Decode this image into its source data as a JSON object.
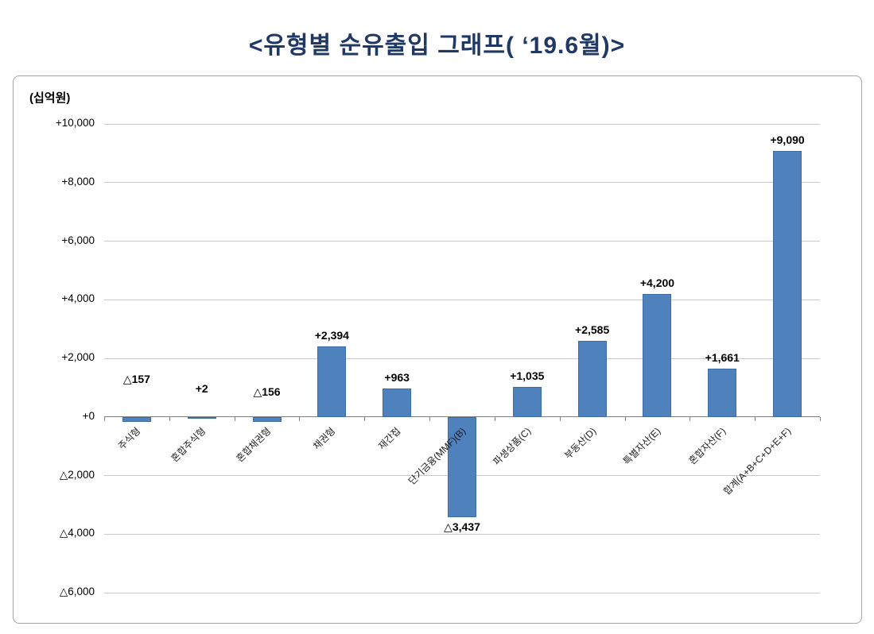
{
  "chart_data": {
    "type": "bar",
    "title": "<유형별 순유출입 그래프( ‘19.6월)>",
    "unit_label": "(십억원)",
    "categories": [
      "주식형",
      "혼합주식형",
      "혼합채권형",
      "채권형",
      "재간접",
      "단기금융(MMF)(B)",
      "파생상품(C)",
      "부동산(D)",
      "특별자산(E)",
      "혼합자산(F)",
      "합계(A+B+C+D+E+F)"
    ],
    "values": [
      -157,
      2,
      -156,
      2394,
      963,
      -3437,
      1035,
      2585,
      4200,
      1661,
      9090
    ],
    "data_labels": [
      {
        "text": "△157",
        "placement": "above_axis",
        "gap": 40
      },
      {
        "text": "+2",
        "placement": "above_axis",
        "gap": 28
      },
      {
        "text": "△156",
        "placement": "above_axis",
        "gap": 24
      },
      {
        "text": "+2,394",
        "placement": "above_bar",
        "gap": 6
      },
      {
        "text": "+963",
        "placement": "above_bar",
        "gap": 6
      },
      {
        "text": "△3,437",
        "placement": "below_bar",
        "gap": 4
      },
      {
        "text": "+1,035",
        "placement": "above_bar",
        "gap": 6
      },
      {
        "text": "+2,585",
        "placement": "above_bar",
        "gap": 6
      },
      {
        "text": "+4,200",
        "placement": "above_bar",
        "gap": 6
      },
      {
        "text": "+1,661",
        "placement": "above_bar",
        "gap": 6
      },
      {
        "text": "+9,090",
        "placement": "above_bar",
        "gap": 6
      }
    ],
    "y_ticks": [
      {
        "value": 10000,
        "label": "+10,000"
      },
      {
        "value": 8000,
        "label": "+8,000"
      },
      {
        "value": 6000,
        "label": "+6,000"
      },
      {
        "value": 4000,
        "label": "+4,000"
      },
      {
        "value": 2000,
        "label": "+2,000"
      },
      {
        "value": 0,
        "label": "+0"
      },
      {
        "value": -2000,
        "label": "△2,000"
      },
      {
        "value": -4000,
        "label": "△4,000"
      },
      {
        "value": -6000,
        "label": "△6,000"
      }
    ],
    "ylim": [
      -6000,
      10000
    ],
    "bar_color": "#4F81BD",
    "bar_border_color": "#3C6DA5",
    "grid": true,
    "legend": "none"
  }
}
